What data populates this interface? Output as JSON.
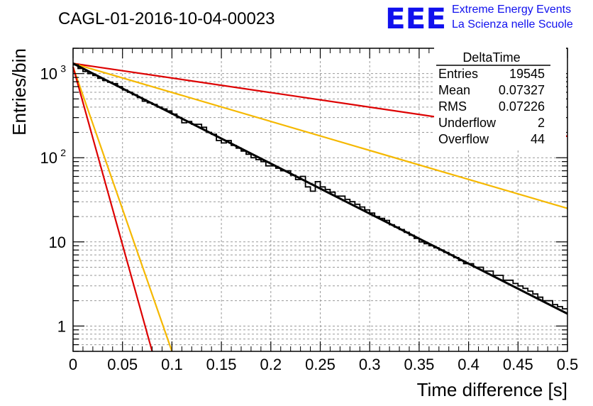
{
  "header": {
    "run_id": "CAGL-01-2016-10-04-00023",
    "brand_logo": "EEE",
    "brand_line1": "Extreme Energy Events",
    "brand_line2": "La Scienza nelle Scuole"
  },
  "stats_box": {
    "title": "DeltaTime",
    "rows": [
      {
        "label": "Entries",
        "value": "19545"
      },
      {
        "label": "Mean",
        "value": "0.07327"
      },
      {
        "label": "RMS",
        "value": "0.07226"
      },
      {
        "label": "Underflow",
        "value": "2"
      },
      {
        "label": "Overflow",
        "value": "44"
      }
    ]
  },
  "colors": {
    "histogram": "#000000",
    "fit": "#000000",
    "red_curve": "#dd0000",
    "yellow_curve": "#f5b800",
    "grid": "#999999"
  },
  "chart_data": {
    "type": "line",
    "xlabel": "Time difference [s]",
    "ylabel": "Entries/bin",
    "xlim": [
      0,
      0.5
    ],
    "ylim": [
      0.5,
      2000
    ],
    "yscale": "log",
    "grid": true,
    "x_ticks": [
      "0",
      "0.05",
      "0.1",
      "0.15",
      "0.2",
      "0.25",
      "0.3",
      "0.35",
      "0.4",
      "0.45",
      "0.5"
    ],
    "y_ticks": [
      {
        "value": 1,
        "label": "1"
      },
      {
        "value": 10,
        "label": "10"
      },
      {
        "value": 100,
        "label": "10",
        "exp": "2"
      },
      {
        "value": 1000,
        "label": "10",
        "exp": "3"
      }
    ],
    "histogram": {
      "bin_width": 0.005,
      "counts": [
        1270,
        1150,
        1060,
        1000,
        950,
        880,
        830,
        790,
        760,
        700,
        640,
        600,
        560,
        520,
        470,
        450,
        430,
        400,
        380,
        360,
        330,
        300,
        260,
        270,
        250,
        250,
        230,
        200,
        190,
        160,
        150,
        160,
        140,
        130,
        120,
        110,
        100,
        95,
        90,
        80,
        80,
        75,
        70,
        70,
        62,
        55,
        60,
        45,
        40,
        52,
        45,
        42,
        39,
        35,
        35,
        32,
        30,
        28,
        26,
        24,
        22,
        20,
        19,
        18,
        16,
        15,
        14,
        13,
        12,
        11,
        10,
        9.5,
        9,
        8.5,
        8,
        7.5,
        7,
        6.5,
        6,
        5.5,
        5.5,
        5,
        5,
        4.5,
        4.5,
        4,
        4,
        3.5,
        3.5,
        3.2,
        3,
        2.8,
        2.6,
        2.4,
        2.2,
        2,
        2,
        1.8,
        1.7,
        1.6
      ]
    },
    "fit": {
      "x": [
        0,
        0.5
      ],
      "y": [
        1320,
        1.4
      ]
    },
    "curves": [
      {
        "color": "#dd0000",
        "x": [
          0,
          0.5
        ],
        "y": [
          1320,
          180
        ]
      },
      {
        "color": "#f5b800",
        "x": [
          0,
          0.5
        ],
        "y": [
          1320,
          25
        ]
      },
      {
        "color": "#f5b800",
        "x": [
          0,
          0.1
        ],
        "y": [
          1200,
          0.5
        ]
      },
      {
        "color": "#dd0000",
        "x": [
          0,
          0.08
        ],
        "y": [
          1200,
          0.5
        ]
      }
    ]
  }
}
